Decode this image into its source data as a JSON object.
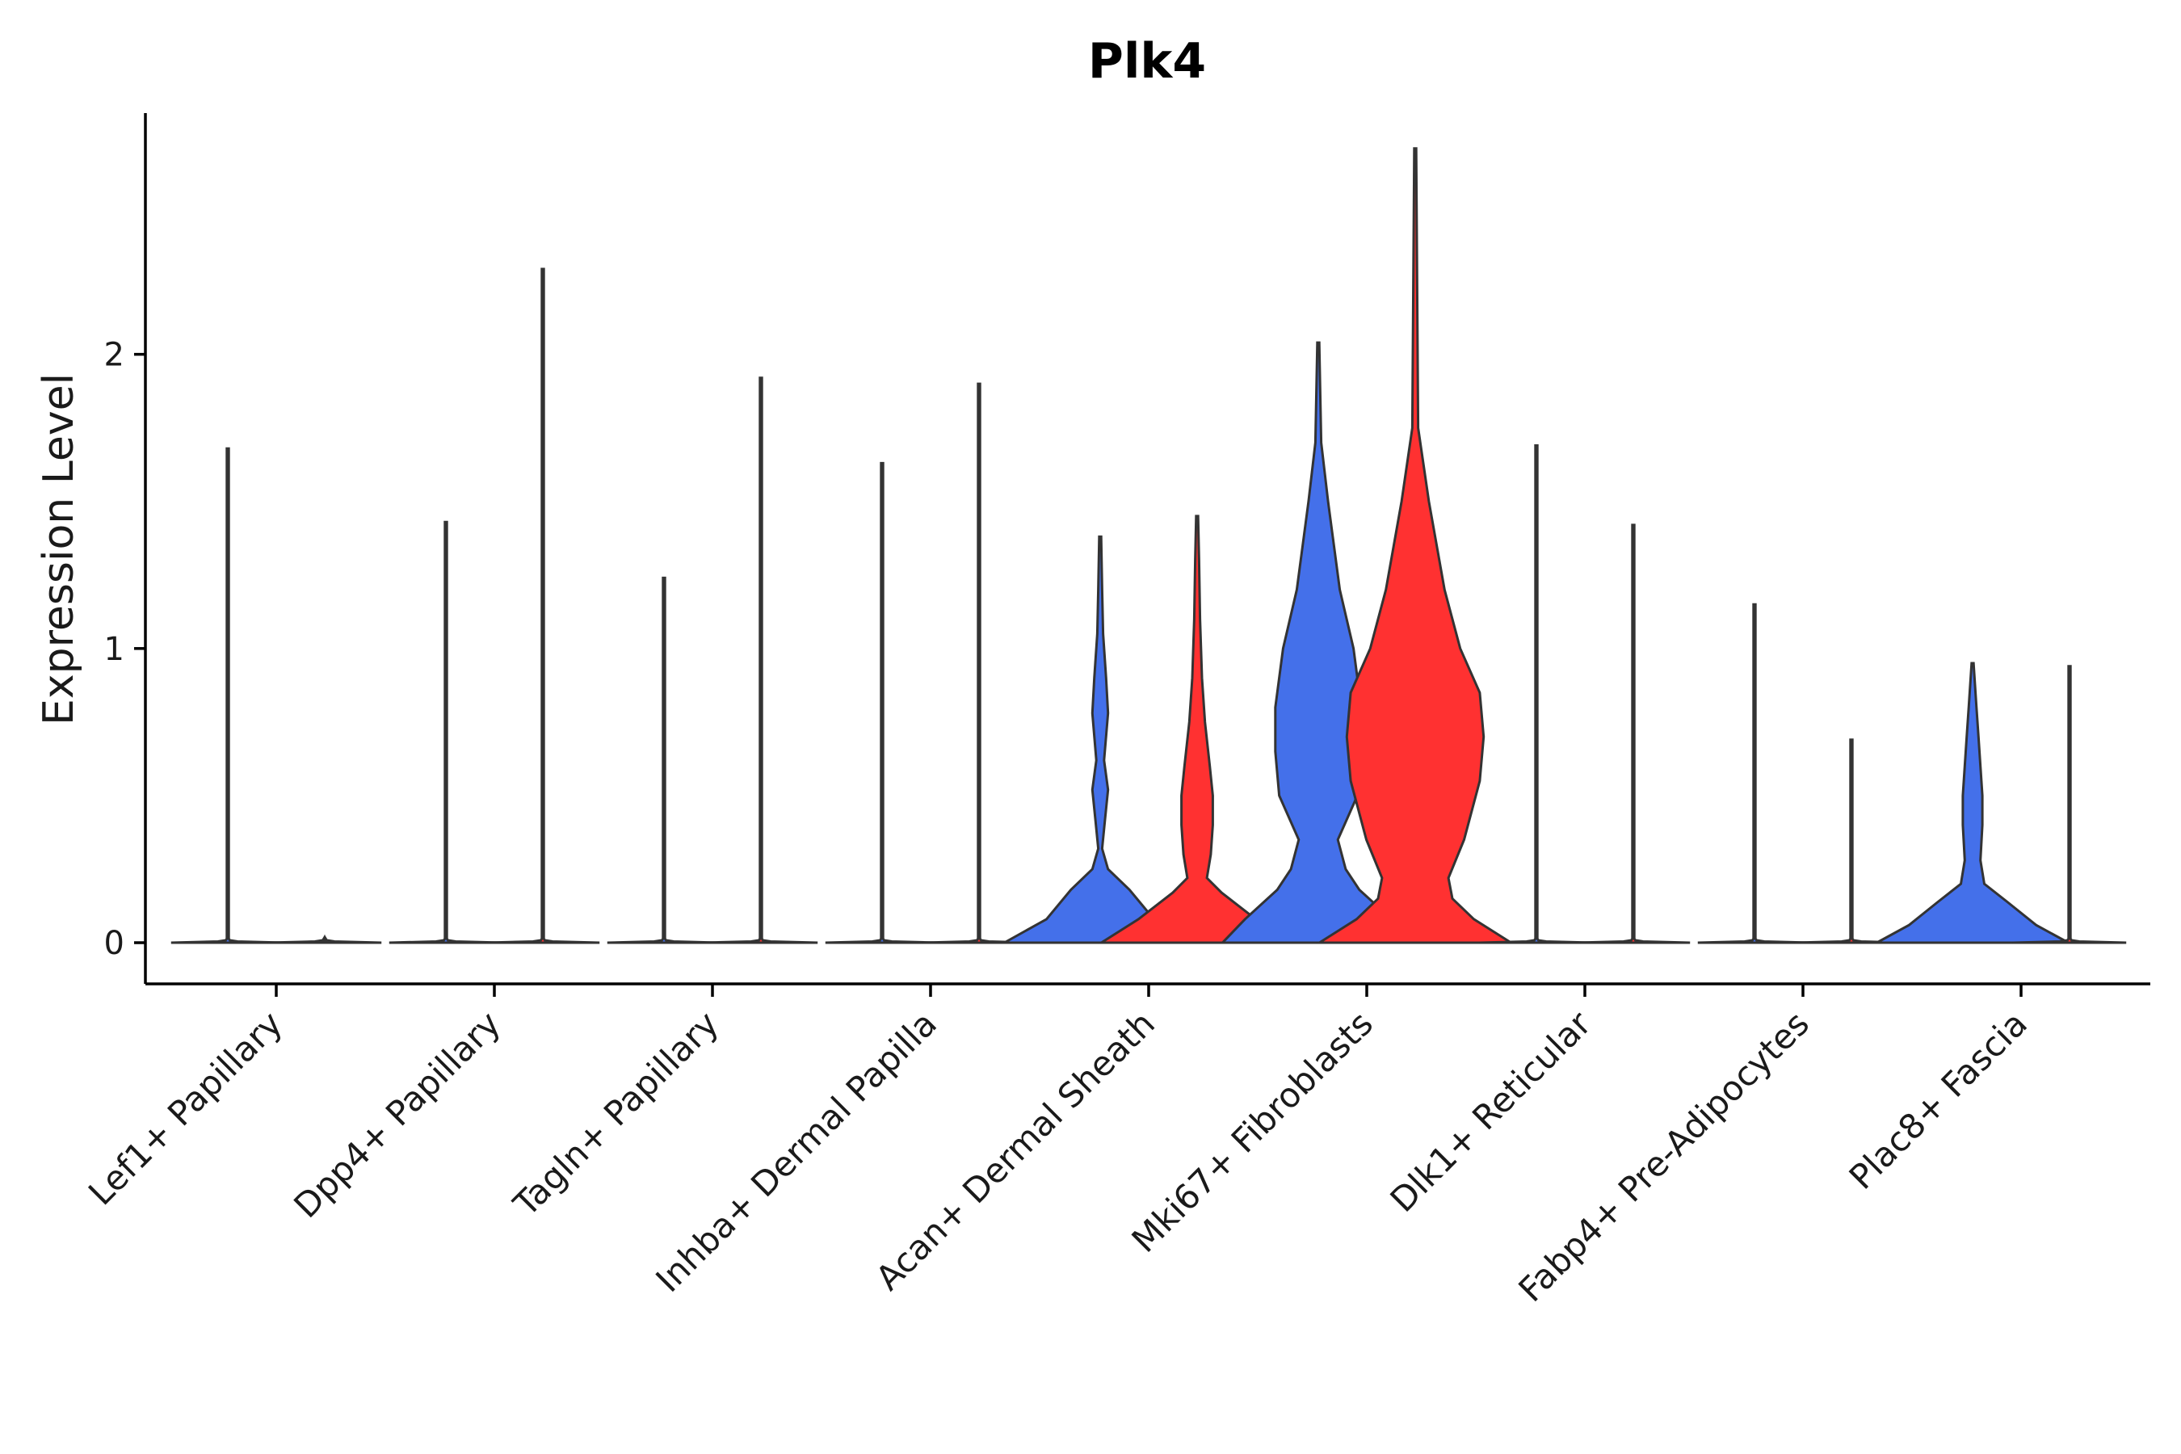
{
  "chart_data": {
    "type": "violin",
    "title": "Plk4",
    "xlabel": "",
    "ylabel": "Expression Level",
    "ylim": [
      -0.14,
      2.82
    ],
    "yticks": [
      0,
      1,
      2
    ],
    "colors": {
      "group1": "#4470ea",
      "group2": "#ff3131",
      "stroke": "#333333"
    },
    "categories": [
      "Lef1+ Papillary",
      "Dpp4+ Papillary",
      "Tagln+ Papillary",
      "Inhba+ Dermal Papilla",
      "Acan+ Dermal Sheath",
      "Mki67+ Fibroblasts",
      "Dlk1+ Reticular",
      "Fabp4+ Pre-Adipocytes",
      "Plac8+ Fascia"
    ],
    "series": [
      {
        "name": "group1",
        "max_values": [
          1.68,
          1.43,
          1.24,
          1.63,
          1.38,
          2.04,
          1.69,
          1.15,
          0.95
        ],
        "density_profiles": [
          null,
          null,
          null,
          null,
          [
            [
              0,
              0.98
            ],
            [
              0.08,
              0.55
            ],
            [
              0.18,
              0.3
            ],
            [
              0.25,
              0.08
            ],
            [
              0.32,
              0.02
            ],
            [
              0.42,
              0.05
            ],
            [
              0.52,
              0.08
            ],
            [
              0.62,
              0.04
            ],
            [
              0.78,
              0.08
            ],
            [
              0.9,
              0.06
            ],
            [
              1.05,
              0.03
            ],
            [
              1.2,
              0.02
            ],
            [
              1.38,
              0
            ]
          ],
          [
            [
              0,
              0.98
            ],
            [
              0.08,
              0.75
            ],
            [
              0.18,
              0.42
            ],
            [
              0.25,
              0.28
            ],
            [
              0.35,
              0.2
            ],
            [
              0.5,
              0.4
            ],
            [
              0.65,
              0.44
            ],
            [
              0.8,
              0.44
            ],
            [
              1.0,
              0.36
            ],
            [
              1.2,
              0.22
            ],
            [
              1.5,
              0.1
            ],
            [
              1.7,
              0.03
            ],
            [
              2.04,
              0
            ]
          ],
          null,
          null,
          [
            [
              0,
              0.98
            ],
            [
              0.06,
              0.65
            ],
            [
              0.14,
              0.35
            ],
            [
              0.2,
              0.12
            ],
            [
              0.28,
              0.08
            ],
            [
              0.4,
              0.1
            ],
            [
              0.5,
              0.1
            ],
            [
              0.6,
              0.08
            ],
            [
              0.7,
              0.06
            ],
            [
              0.8,
              0.04
            ],
            [
              0.95,
              0
            ]
          ]
        ]
      },
      {
        "name": "group2",
        "max_values": [
          0.0,
          2.29,
          1.92,
          1.9,
          1.45,
          2.7,
          1.42,
          0.69,
          0.94
        ],
        "density_profiles": [
          null,
          null,
          null,
          null,
          [
            [
              0,
              0.98
            ],
            [
              0.08,
              0.6
            ],
            [
              0.17,
              0.25
            ],
            [
              0.22,
              0.1
            ],
            [
              0.3,
              0.14
            ],
            [
              0.4,
              0.16
            ],
            [
              0.5,
              0.16
            ],
            [
              0.6,
              0.13
            ],
            [
              0.75,
              0.08
            ],
            [
              0.9,
              0.05
            ],
            [
              1.1,
              0.03
            ],
            [
              1.3,
              0.02
            ],
            [
              1.45,
              0
            ]
          ],
          [
            [
              0,
              0.98
            ],
            [
              0.08,
              0.6
            ],
            [
              0.15,
              0.38
            ],
            [
              0.22,
              0.34
            ],
            [
              0.35,
              0.5
            ],
            [
              0.55,
              0.66
            ],
            [
              0.7,
              0.7
            ],
            [
              0.85,
              0.66
            ],
            [
              1.0,
              0.46
            ],
            [
              1.2,
              0.3
            ],
            [
              1.5,
              0.14
            ],
            [
              1.75,
              0.03
            ],
            [
              2.7,
              0
            ]
          ],
          null,
          null,
          null
        ]
      }
    ]
  }
}
